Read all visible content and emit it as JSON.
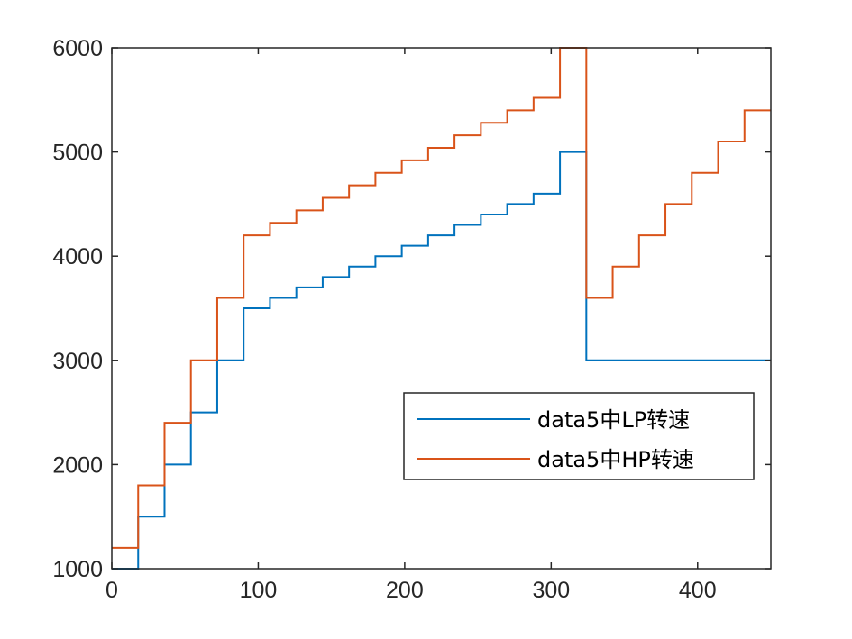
{
  "chart_data": {
    "type": "line",
    "title": "",
    "xlabel": "",
    "ylabel": "",
    "xlim": [
      0,
      450
    ],
    "ylim": [
      1000,
      6000
    ],
    "xticks": [
      0,
      100,
      200,
      300,
      400
    ],
    "yticks": [
      1000,
      2000,
      3000,
      4000,
      5000,
      6000
    ],
    "xtick_labels": [
      "0",
      "100",
      "200",
      "300",
      "400"
    ],
    "ytick_labels": [
      "1000",
      "2000",
      "3000",
      "4000",
      "5000",
      "6000"
    ],
    "grid": false,
    "legend_position": "lower-right",
    "series": [
      {
        "name": "data5中LP转速",
        "color": "#0072BD",
        "x": [
          0,
          18,
          18,
          36,
          36,
          54,
          54,
          72,
          72,
          90,
          90,
          108,
          108,
          126,
          126,
          144,
          144,
          162,
          162,
          180,
          180,
          198,
          198,
          216,
          216,
          234,
          234,
          252,
          252,
          270,
          270,
          288,
          288,
          306,
          306,
          324,
          324,
          450
        ],
        "y": [
          1000,
          1000,
          1500,
          1500,
          2000,
          2000,
          2500,
          2500,
          3000,
          3000,
          3500,
          3500,
          3600,
          3600,
          3700,
          3700,
          3800,
          3800,
          3900,
          3900,
          4000,
          4000,
          4100,
          4100,
          4200,
          4200,
          4300,
          4300,
          4400,
          4400,
          4500,
          4500,
          4600,
          4600,
          5000,
          5000,
          3000,
          3000
        ]
      },
      {
        "name": "data5中HP转速",
        "color": "#D95319",
        "x": [
          0,
          18,
          18,
          36,
          36,
          54,
          54,
          72,
          72,
          90,
          90,
          108,
          108,
          126,
          126,
          144,
          144,
          162,
          162,
          180,
          180,
          198,
          198,
          216,
          216,
          234,
          234,
          252,
          252,
          270,
          270,
          288,
          288,
          306,
          306,
          324,
          324,
          342,
          342,
          360,
          360,
          378,
          378,
          396,
          396,
          414,
          414,
          432,
          432,
          450
        ],
        "y": [
          1200,
          1200,
          1800,
          1800,
          2400,
          2400,
          3000,
          3000,
          3600,
          3600,
          4200,
          4200,
          4320,
          4320,
          4440,
          4440,
          4560,
          4560,
          4680,
          4680,
          4800,
          4800,
          4920,
          4920,
          5040,
          5040,
          5160,
          5160,
          5280,
          5280,
          5400,
          5400,
          5520,
          5520,
          6000,
          6000,
          3600,
          3600,
          3900,
          3900,
          4200,
          4200,
          4500,
          4500,
          4800,
          4800,
          5100,
          5100,
          5400,
          5400
        ]
      }
    ]
  }
}
